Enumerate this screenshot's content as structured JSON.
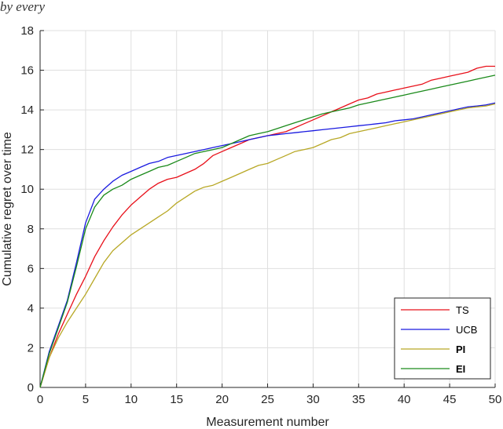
{
  "header_fragment": "by every",
  "chart_data": {
    "type": "line",
    "title": "",
    "xlabel": "Measurement number",
    "ylabel": "Cumulative regret over time",
    "xlim": [
      0,
      50
    ],
    "ylim": [
      0,
      18
    ],
    "xticks": [
      0,
      5,
      10,
      15,
      20,
      25,
      30,
      35,
      40,
      45,
      50
    ],
    "yticks": [
      0,
      2,
      4,
      6,
      8,
      10,
      12,
      14,
      16,
      18
    ],
    "grid": true,
    "legend_position": "bottom-right",
    "series": [
      {
        "name": "TS",
        "color": "#e8101a",
        "bold_label": false,
        "x": [
          0,
          1,
          2,
          3,
          4,
          5,
          6,
          7,
          8,
          9,
          10,
          11,
          12,
          13,
          14,
          15,
          16,
          17,
          18,
          19,
          20,
          21,
          22,
          23,
          24,
          25,
          26,
          27,
          28,
          29,
          30,
          31,
          32,
          33,
          34,
          35,
          36,
          37,
          38,
          39,
          40,
          41,
          42,
          43,
          44,
          45,
          46,
          47,
          48,
          49,
          50
        ],
        "y": [
          0,
          1.5,
          2.7,
          3.7,
          4.7,
          5.6,
          6.6,
          7.4,
          8.1,
          8.7,
          9.2,
          9.6,
          10.0,
          10.3,
          10.5,
          10.6,
          10.8,
          11.0,
          11.3,
          11.7,
          11.9,
          12.1,
          12.3,
          12.5,
          12.6,
          12.7,
          12.8,
          12.9,
          13.1,
          13.3,
          13.5,
          13.7,
          13.9,
          14.1,
          14.3,
          14.5,
          14.6,
          14.8,
          14.9,
          15.0,
          15.1,
          15.2,
          15.3,
          15.5,
          15.6,
          15.7,
          15.8,
          15.9,
          16.1,
          16.2,
          16.2
        ]
      },
      {
        "name": "UCB",
        "color": "#1a1ae0",
        "bold_label": false,
        "x": [
          0,
          1,
          2,
          3,
          4,
          5,
          6,
          7,
          8,
          9,
          10,
          11,
          12,
          13,
          14,
          15,
          16,
          17,
          18,
          19,
          20,
          21,
          22,
          23,
          24,
          25,
          26,
          27,
          28,
          29,
          30,
          31,
          32,
          33,
          34,
          35,
          36,
          37,
          38,
          39,
          40,
          41,
          42,
          43,
          44,
          45,
          46,
          47,
          48,
          49,
          50
        ],
        "y": [
          0,
          1.8,
          3.1,
          4.4,
          6.3,
          8.3,
          9.5,
          10.0,
          10.4,
          10.7,
          10.9,
          11.1,
          11.3,
          11.4,
          11.6,
          11.7,
          11.8,
          11.9,
          12.0,
          12.1,
          12.2,
          12.3,
          12.4,
          12.5,
          12.6,
          12.7,
          12.75,
          12.8,
          12.85,
          12.9,
          12.95,
          13.0,
          13.05,
          13.1,
          13.15,
          13.2,
          13.25,
          13.3,
          13.35,
          13.45,
          13.5,
          13.55,
          13.65,
          13.75,
          13.85,
          13.95,
          14.05,
          14.15,
          14.2,
          14.25,
          14.35
        ]
      },
      {
        "name": "PI",
        "color": "#b8a826",
        "bold_label": true,
        "x": [
          0,
          1,
          2,
          3,
          4,
          5,
          6,
          7,
          8,
          9,
          10,
          11,
          12,
          13,
          14,
          15,
          16,
          17,
          18,
          19,
          20,
          21,
          22,
          23,
          24,
          25,
          26,
          27,
          28,
          29,
          30,
          31,
          32,
          33,
          34,
          35,
          36,
          37,
          38,
          39,
          40,
          41,
          42,
          43,
          44,
          45,
          46,
          47,
          48,
          49,
          50
        ],
        "y": [
          0,
          1.5,
          2.5,
          3.3,
          4.0,
          4.7,
          5.5,
          6.3,
          6.9,
          7.3,
          7.7,
          8.0,
          8.3,
          8.6,
          8.9,
          9.3,
          9.6,
          9.9,
          10.1,
          10.2,
          10.4,
          10.6,
          10.8,
          11.0,
          11.2,
          11.3,
          11.5,
          11.7,
          11.9,
          12.0,
          12.1,
          12.3,
          12.5,
          12.6,
          12.8,
          12.9,
          13.0,
          13.1,
          13.2,
          13.3,
          13.4,
          13.5,
          13.6,
          13.7,
          13.8,
          13.9,
          14.0,
          14.1,
          14.15,
          14.2,
          14.3
        ]
      },
      {
        "name": "EI",
        "color": "#1a8a1a",
        "bold_label": true,
        "x": [
          0,
          1,
          2,
          3,
          4,
          5,
          6,
          7,
          8,
          9,
          10,
          11,
          12,
          13,
          14,
          15,
          16,
          17,
          18,
          19,
          20,
          21,
          22,
          23,
          24,
          25,
          26,
          27,
          28,
          29,
          30,
          31,
          32,
          33,
          34,
          35,
          36,
          37,
          38,
          39,
          40,
          41,
          42,
          43,
          44,
          45,
          46,
          47,
          48,
          49,
          50
        ],
        "y": [
          0,
          1.7,
          3.0,
          4.3,
          6.1,
          8.0,
          9.1,
          9.7,
          10.0,
          10.2,
          10.5,
          10.7,
          10.9,
          11.1,
          11.2,
          11.4,
          11.6,
          11.8,
          11.9,
          12.0,
          12.1,
          12.3,
          12.5,
          12.7,
          12.8,
          12.9,
          13.05,
          13.2,
          13.35,
          13.5,
          13.65,
          13.8,
          13.9,
          14.0,
          14.1,
          14.25,
          14.35,
          14.45,
          14.55,
          14.65,
          14.75,
          14.85,
          14.95,
          15.05,
          15.15,
          15.25,
          15.35,
          15.45,
          15.55,
          15.65,
          15.75
        ]
      }
    ]
  }
}
